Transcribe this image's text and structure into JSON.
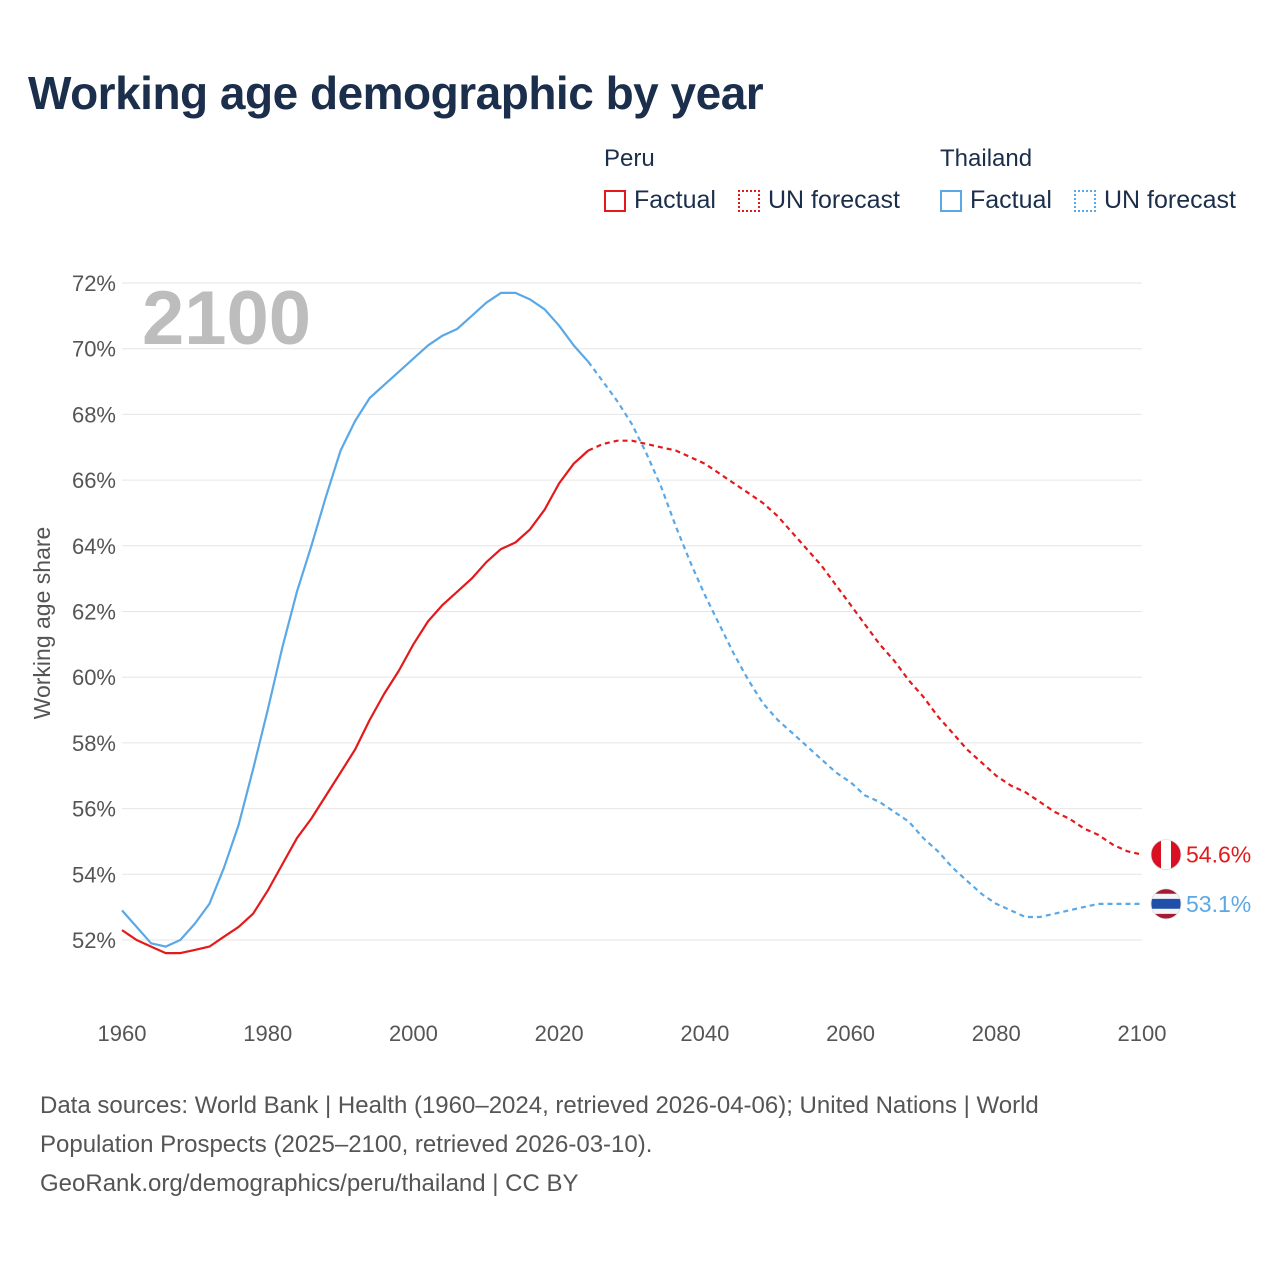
{
  "title": "Working age demographic by year",
  "legend": {
    "groups": [
      {
        "name": "Peru",
        "color": "#e31a1c",
        "factual_label": "Factual",
        "forecast_label": "UN forecast"
      },
      {
        "name": "Thailand",
        "color": "#5ba8e6",
        "factual_label": "Factual",
        "forecast_label": "UN forecast"
      }
    ]
  },
  "footer": {
    "line1": "Data sources: World Bank | Health (1960–2024, retrieved 2026-04-06); United Nations | World",
    "line2": "Population Prospects (2025–2100, retrieved 2026-03-10).",
    "line3": "GeoRank.org/demographics/peru/thailand | CC BY"
  },
  "chart_data": {
    "type": "line",
    "title": "Working age demographic by year",
    "xlabel": "",
    "ylabel": "Working age share",
    "year_label": "2100",
    "x_ticks": [
      1960,
      1980,
      2000,
      2020,
      2040,
      2060,
      2080,
      2100
    ],
    "y_ticks": [
      52,
      54,
      56,
      58,
      60,
      62,
      64,
      66,
      68,
      70,
      72
    ],
    "y_tick_format": "%",
    "xlim": [
      1960,
      2100
    ],
    "ylim": [
      51,
      72.5
    ],
    "grid": true,
    "series": [
      {
        "name": "Peru",
        "color": "#e31a1c",
        "end_label": "54.6%",
        "flag": "peru-flag",
        "factual": {
          "x": [
            1960,
            1962,
            1964,
            1966,
            1968,
            1970,
            1972,
            1974,
            1976,
            1978,
            1980,
            1982,
            1984,
            1986,
            1988,
            1990,
            1992,
            1994,
            1996,
            1998,
            2000,
            2002,
            2004,
            2006,
            2008,
            2010,
            2012,
            2014,
            2016,
            2018,
            2020,
            2022,
            2024
          ],
          "y": [
            52.3,
            52.0,
            51.8,
            51.6,
            51.6,
            51.7,
            51.8,
            52.1,
            52.4,
            52.8,
            53.5,
            54.3,
            55.1,
            55.7,
            56.4,
            57.1,
            57.8,
            58.7,
            59.5,
            60.2,
            61.0,
            61.7,
            62.2,
            62.6,
            63.0,
            63.5,
            63.9,
            64.1,
            64.5,
            65.1,
            65.9,
            66.5,
            66.9
          ]
        },
        "forecast": {
          "x": [
            2024,
            2026,
            2028,
            2030,
            2032,
            2034,
            2036,
            2038,
            2040,
            2042,
            2044,
            2046,
            2048,
            2050,
            2052,
            2054,
            2056,
            2058,
            2060,
            2062,
            2064,
            2066,
            2068,
            2070,
            2072,
            2074,
            2076,
            2078,
            2080,
            2082,
            2084,
            2086,
            2088,
            2090,
            2092,
            2094,
            2096,
            2098,
            2100
          ],
          "y": [
            66.9,
            67.1,
            67.2,
            67.2,
            67.1,
            67.0,
            66.9,
            66.7,
            66.5,
            66.2,
            65.9,
            65.6,
            65.3,
            64.9,
            64.4,
            63.9,
            63.4,
            62.8,
            62.2,
            61.6,
            61.0,
            60.5,
            59.9,
            59.4,
            58.8,
            58.3,
            57.8,
            57.4,
            57.0,
            56.7,
            56.5,
            56.2,
            55.9,
            55.7,
            55.4,
            55.2,
            54.9,
            54.7,
            54.6
          ]
        }
      },
      {
        "name": "Thailand",
        "color": "#5ba8e6",
        "end_label": "53.1%",
        "flag": "thailand-flag",
        "factual": {
          "x": [
            1960,
            1962,
            1964,
            1966,
            1968,
            1970,
            1972,
            1974,
            1976,
            1978,
            1980,
            1982,
            1984,
            1986,
            1988,
            1990,
            1992,
            1994,
            1996,
            1998,
            2000,
            2002,
            2004,
            2006,
            2008,
            2010,
            2012,
            2014,
            2016,
            2018,
            2020,
            2022,
            2024
          ],
          "y": [
            52.9,
            52.4,
            51.9,
            51.8,
            52.0,
            52.5,
            53.1,
            54.2,
            55.5,
            57.2,
            59.0,
            60.9,
            62.6,
            64.0,
            65.5,
            66.9,
            67.8,
            68.5,
            68.9,
            69.3,
            69.7,
            70.1,
            70.4,
            70.6,
            71.0,
            71.4,
            71.7,
            71.7,
            71.5,
            71.2,
            70.7,
            70.1,
            69.6
          ]
        },
        "forecast": {
          "x": [
            2024,
            2026,
            2028,
            2030,
            2032,
            2034,
            2036,
            2038,
            2040,
            2042,
            2044,
            2046,
            2048,
            2050,
            2052,
            2054,
            2056,
            2058,
            2060,
            2062,
            2064,
            2066,
            2068,
            2070,
            2072,
            2074,
            2076,
            2078,
            2080,
            2082,
            2084,
            2086,
            2088,
            2090,
            2092,
            2094,
            2096,
            2098,
            2100
          ],
          "y": [
            69.6,
            69.0,
            68.4,
            67.7,
            66.8,
            65.8,
            64.6,
            63.5,
            62.5,
            61.6,
            60.7,
            59.9,
            59.2,
            58.7,
            58.3,
            57.9,
            57.5,
            57.1,
            56.8,
            56.4,
            56.2,
            55.9,
            55.6,
            55.1,
            54.7,
            54.2,
            53.8,
            53.4,
            53.1,
            52.9,
            52.7,
            52.7,
            52.8,
            52.9,
            53.0,
            53.1,
            53.1,
            53.1,
            53.1
          ]
        }
      }
    ]
  }
}
